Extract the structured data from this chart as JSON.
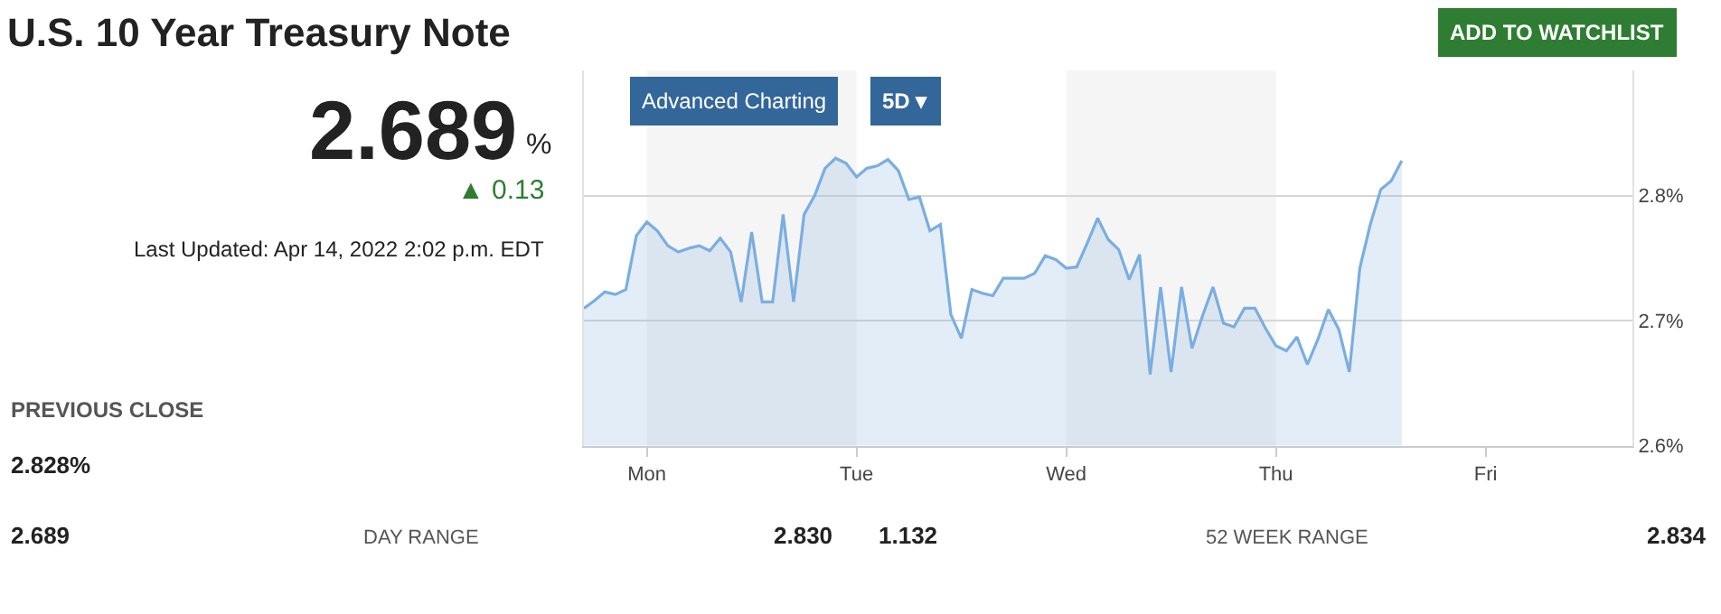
{
  "chart_data": {
    "type": "area",
    "title": "U.S. 10 Year Treasury Note",
    "categories": [
      null,
      null,
      null,
      null,
      null,
      null,
      "Mon",
      null,
      null,
      null,
      null,
      null,
      null,
      null,
      null,
      null,
      null,
      null,
      null,
      null,
      null,
      null,
      null,
      null,
      null,
      null,
      "Tue",
      null,
      null,
      null,
      null,
      null,
      null,
      null,
      null,
      null,
      null,
      null,
      null,
      null,
      null,
      null,
      null,
      null,
      null,
      null,
      "Wed",
      null,
      null,
      null,
      null,
      null,
      null,
      null,
      null,
      null,
      null,
      null,
      null,
      null,
      null,
      null,
      null,
      null,
      null,
      null,
      "Thu",
      null,
      null,
      null,
      null,
      null,
      null,
      null,
      null,
      null,
      null,
      null,
      null,
      null,
      null,
      null,
      null,
      null,
      null,
      null,
      "Fri",
      null,
      null,
      null,
      null,
      null,
      null,
      null,
      null,
      null,
      null,
      null,
      null,
      null,
      null
    ],
    "series": [
      {
        "color": "#7aaee0",
        "values": [
          2.71,
          2.716,
          2.723,
          2.721,
          2.725,
          2.768,
          2.779,
          2.772,
          2.76,
          2.755,
          2.758,
          2.76,
          2.756,
          2.766,
          2.755,
          2.715,
          2.771,
          2.715,
          2.715,
          2.785,
          2.715,
          2.785,
          2.8,
          2.822,
          2.83,
          2.826,
          2.815,
          2.822,
          2.824,
          2.829,
          2.82,
          2.797,
          2.799,
          2.772,
          2.777,
          2.705,
          2.686,
          2.725,
          2.722,
          2.72,
          2.734,
          2.734,
          2.734,
          2.738,
          2.752,
          2.749,
          2.742,
          2.743,
          2.762,
          2.782,
          2.765,
          2.757,
          2.733,
          2.753,
          2.657,
          2.727,
          2.659,
          2.727,
          2.678,
          2.704,
          2.727,
          2.698,
          2.695,
          2.71,
          2.71,
          2.694,
          2.68,
          2.676,
          2.687,
          2.665,
          2.685,
          2.709,
          2.693,
          2.659,
          2.742,
          2.777,
          2.805,
          2.812,
          2.828,
          null,
          null,
          null,
          null,
          null,
          null,
          null,
          null,
          null,
          null,
          null,
          null,
          null,
          null,
          null,
          null,
          null,
          null,
          null,
          null,
          null,
          null
        ]
      }
    ],
    "ylim": [
      2.6,
      2.9
    ],
    "yticks": [
      {
        "value": 2.6,
        "label": "2.6%"
      },
      {
        "value": 2.7,
        "label": "2.7%"
      },
      {
        "value": 2.8,
        "label": "2.8%"
      }
    ],
    "grid": "y",
    "bands": [
      {
        "axis": "x",
        "from": "Mon",
        "to": "Tue",
        "color": "#f5f5f5"
      },
      {
        "axis": "x",
        "from": "Wed",
        "to": "Thu",
        "color": "#f5f5f5"
      }
    ],
    "annotations": [
      "2.689",
      "%",
      "▲ 0.13",
      "Last Updated: Apr 14, 2022 2:02 p.m. EDT",
      "PREVIOUS CLOSE",
      "2.828%",
      "2.689",
      "DAY RANGE",
      "2.830",
      "1.132",
      "52 WEEK RANGE",
      "2.834",
      "Advanced Charting",
      "5D ▾",
      "ADD TO WATCHLIST"
    ]
  }
}
